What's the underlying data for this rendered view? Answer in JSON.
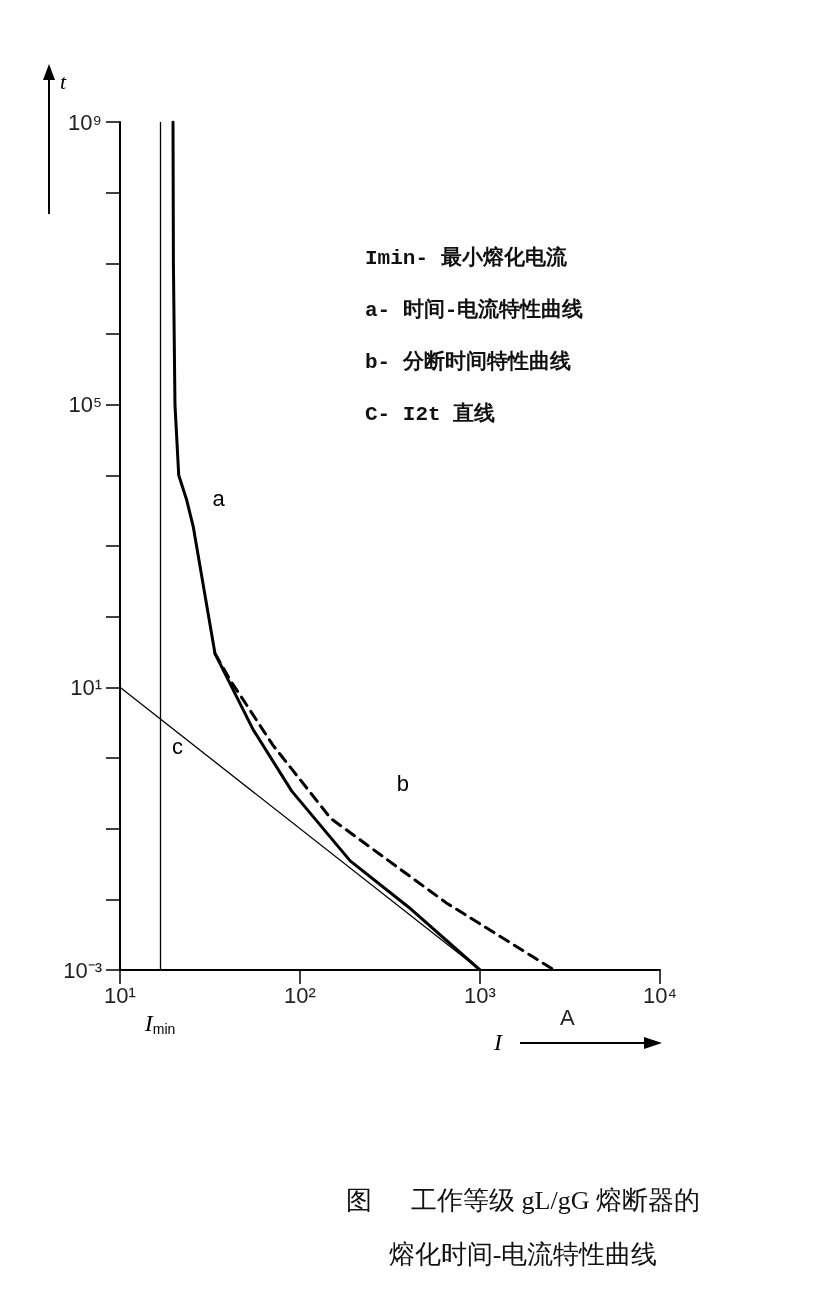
{
  "chart_data": {
    "type": "line",
    "title": "图      工作等级 gL/gG 熔断器的熔化时间-电流特性曲线",
    "xlabel": "I",
    "ylabel": "t",
    "log": "xy",
    "grid": false,
    "legend": false,
    "marker": "none",
    "xlim": [
      10,
      10000
    ],
    "xticks": [
      {
        "value": 10,
        "label": "10¹"
      },
      {
        "value": 100,
        "label": "10²"
      },
      {
        "value": 1000,
        "label": "10³"
      },
      {
        "value": 10000,
        "label": "10⁴"
      }
    ],
    "ylim": [
      0.001,
      1000000000
    ],
    "yticks": [
      {
        "value": 0.001,
        "label": "10⁻³"
      },
      {
        "value": 0.01,
        "label": null
      },
      {
        "value": 0.1,
        "label": null
      },
      {
        "value": 1,
        "label": null
      },
      {
        "value": 10,
        "label": "10¹"
      },
      {
        "value": 100,
        "label": null
      },
      {
        "value": 1000,
        "label": null
      },
      {
        "value": 10000,
        "label": null
      },
      {
        "value": 100000,
        "label": "10⁵"
      },
      {
        "value": 1000000,
        "label": null
      },
      {
        "value": 10000000,
        "label": null
      },
      {
        "value": 100000000,
        "label": null
      },
      {
        "value": 1000000000,
        "label": "10⁹"
      }
    ],
    "series": [
      {
        "name": "a",
        "color": "#000000",
        "line_style": "solid",
        "x": [
          19.7,
          19.8,
          20.2,
          21.2,
          23.4,
          25.5,
          33.7,
          55,
          90,
          190,
          400,
          1000
        ],
        "values": [
          1000000000,
          10000000,
          100000,
          10000,
          4600,
          1900,
          30,
          2.5,
          0.34,
          0.035,
          0.0078,
          0.001
        ]
      },
      {
        "name": "b",
        "color": "#000000",
        "line_style": "dashed",
        "x": [
          33.7,
          41,
          71,
          148,
          650,
          2580
        ],
        "values": [
          30,
          12.6,
          1.5,
          0.14,
          0.0089,
          0.001
        ]
      },
      {
        "name": "c",
        "color": "#000000",
        "line_style": "solid",
        "x": [
          10,
          1000
        ],
        "values": [
          10,
          0.001
        ]
      }
    ],
    "ref_lines": [
      {
        "axis": "x",
        "value": 16.7,
        "label": "I$_{min}$"
      }
    ],
    "annotations": [
      "Imin- 最小熔化电流",
      "a- 时间-电流特性曲线",
      "b- 分断时间特性曲线",
      "C- I2t 直线",
      "A"
    ]
  }
}
